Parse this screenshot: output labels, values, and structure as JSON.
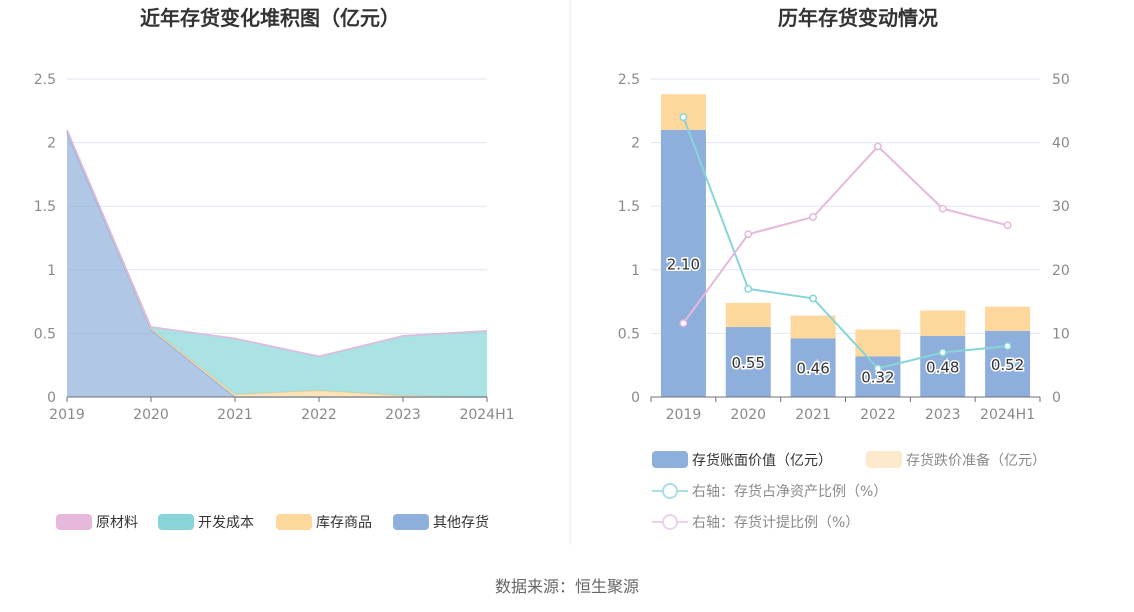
{
  "source_text": "数据来源：恒生聚源",
  "chart_data": [
    {
      "type": "area",
      "title": "近年存货变化堆积图（亿元）",
      "categories": [
        "2019",
        "2020",
        "2021",
        "2022",
        "2023",
        "2024H1"
      ],
      "ylim": [
        0,
        2.5
      ],
      "yticks": [
        "0",
        "0.5",
        "1",
        "1.5",
        "2",
        "2.5"
      ],
      "grid": true,
      "legend_position": "bottom",
      "series": [
        {
          "name": "原材料",
          "values": [
            0,
            0,
            0,
            0,
            0,
            0
          ],
          "color": "#e6b8dc"
        },
        {
          "name": "开发成本",
          "values": [
            0,
            0.01,
            0.44,
            0.27,
            0.47,
            0.52
          ],
          "color": "#87d5d8"
        },
        {
          "name": "库存商品",
          "values": [
            0.02,
            0.01,
            0.02,
            0.05,
            0.01,
            0
          ],
          "color": "#fdd79b"
        },
        {
          "name": "其他存货",
          "values": [
            2.08,
            0.53,
            0,
            0,
            0,
            0
          ],
          "color": "#8eafdc"
        }
      ]
    },
    {
      "type": "bar",
      "title": "历年存货变动情况",
      "categories": [
        "2019",
        "2020",
        "2021",
        "2022",
        "2023",
        "2024H1"
      ],
      "ylim": [
        0,
        2.5
      ],
      "y2lim": [
        0,
        50
      ],
      "yticks": [
        "0",
        "0.5",
        "1",
        "1.5",
        "2",
        "2.5"
      ],
      "y2ticks": [
        "0",
        "10",
        "20",
        "30",
        "40",
        "50"
      ],
      "grid": true,
      "legend_position": "bottom",
      "bar_series": [
        {
          "name": "存货账面价值（亿元）",
          "values": [
            2.1,
            0.55,
            0.46,
            0.32,
            0.48,
            0.52
          ],
          "labels": [
            "2.10",
            "0.55",
            "0.46",
            "0.32",
            "0.48",
            "0.52"
          ],
          "color": "#8eafdc"
        },
        {
          "name": "存货跌价准备（亿元）",
          "values": [
            0.28,
            0.19,
            0.18,
            0.21,
            0.2,
            0.19
          ],
          "color": "#fdd79b"
        }
      ],
      "line_series": [
        {
          "name": "右轴：存货占净资产比例（%）",
          "values": [
            44,
            17,
            15.5,
            4.5,
            7,
            8
          ],
          "color": "#87d5d8"
        },
        {
          "name": "右轴：存货计提比例（%）",
          "values": [
            11.6,
            25.6,
            28.3,
            39.4,
            29.6,
            27
          ],
          "color": "#e6b8dc"
        }
      ]
    }
  ]
}
